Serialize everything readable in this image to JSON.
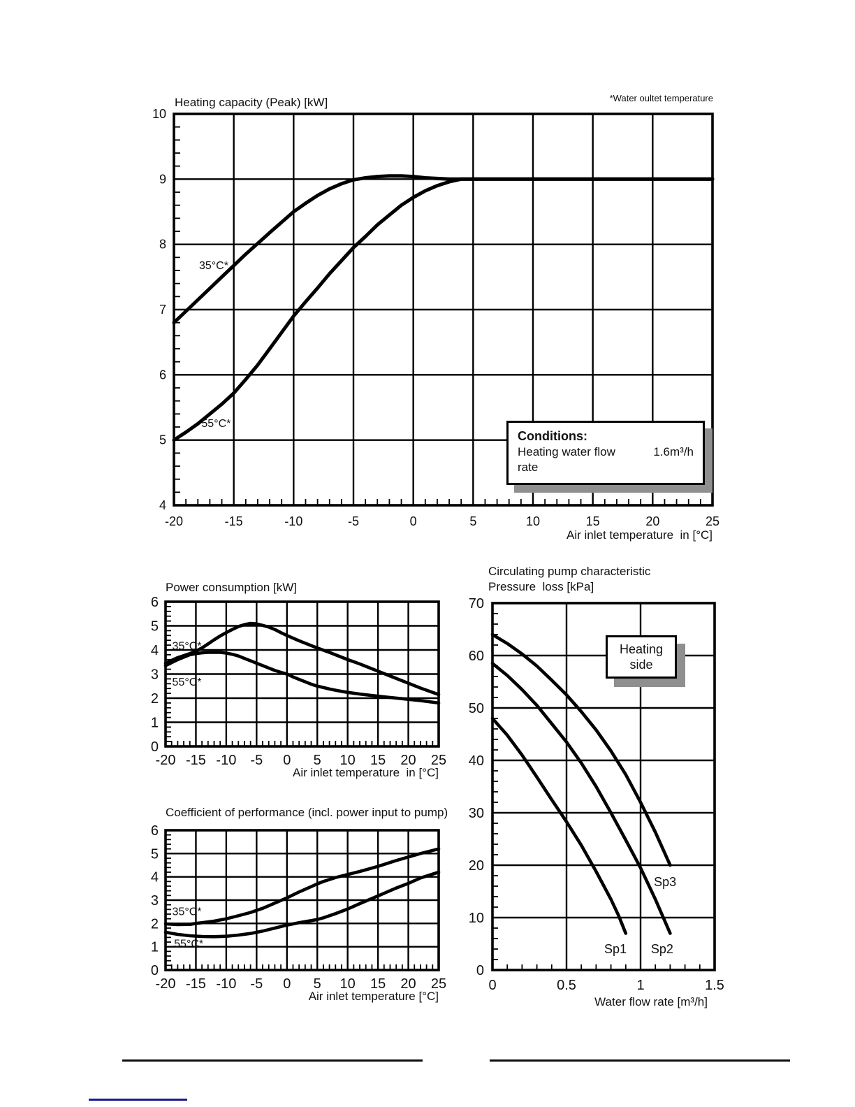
{
  "note_top_right": "*Water oultet temperature",
  "conditions_box": {
    "heading": "Conditions:",
    "label": "Heating water flow rate",
    "value": "1.6m³/h"
  },
  "heating_side_box": {
    "line1": "Heating",
    "line2": "side"
  },
  "chart_data": [
    {
      "id": "heating_capacity",
      "type": "line",
      "title": "Heating capacity (Peak) [kW]",
      "xlabel": "Air inlet temperature  in [°C]",
      "ylabel": "",
      "xlim": [
        -20,
        25
      ],
      "ylim": [
        4,
        10
      ],
      "x_ticks": [
        -20,
        -15,
        -10,
        -5,
        0,
        5,
        10,
        15,
        20,
        25
      ],
      "y_ticks": [
        4,
        5,
        6,
        7,
        8,
        9,
        10
      ],
      "x_minor_step": 1,
      "y_minor_step": 0.2,
      "grid": true,
      "legend_position": "inline-labels",
      "series": [
        {
          "name": "35°C*",
          "label_pos": [
            -17.9,
            7.62
          ],
          "points": [
            [
              -20,
              6.8
            ],
            [
              -18,
              7.15
            ],
            [
              -16,
              7.5
            ],
            [
              -14,
              7.85
            ],
            [
              -12,
              8.18
            ],
            [
              -10,
              8.5
            ],
            [
              -9,
              8.63
            ],
            [
              -8,
              8.75
            ],
            [
              -7,
              8.85
            ],
            [
              -6,
              8.93
            ],
            [
              -5,
              8.99
            ],
            [
              -4,
              9.02
            ],
            [
              -3,
              9.04
            ],
            [
              -2,
              9.05
            ],
            [
              -1,
              9.05
            ],
            [
              0,
              9.04
            ],
            [
              1,
              9.02
            ],
            [
              2,
              9.01
            ],
            [
              3,
              9.0
            ],
            [
              5,
              9.0
            ],
            [
              10,
              9.0
            ],
            [
              15,
              9.0
            ],
            [
              20,
              9.0
            ],
            [
              25,
              9.0
            ]
          ]
        },
        {
          "name": "55°C*",
          "label_pos": [
            -17.7,
            5.2
          ],
          "points": [
            [
              -20,
              5.0
            ],
            [
              -19,
              5.12
            ],
            [
              -18,
              5.25
            ],
            [
              -17,
              5.4
            ],
            [
              -16,
              5.55
            ],
            [
              -15,
              5.72
            ],
            [
              -14,
              5.93
            ],
            [
              -13,
              6.15
            ],
            [
              -12,
              6.4
            ],
            [
              -11,
              6.65
            ],
            [
              -10,
              6.9
            ],
            [
              -9,
              7.12
            ],
            [
              -8,
              7.33
            ],
            [
              -7,
              7.55
            ],
            [
              -6,
              7.75
            ],
            [
              -5,
              7.95
            ],
            [
              -4,
              8.12
            ],
            [
              -3,
              8.3
            ],
            [
              -2,
              8.45
            ],
            [
              -1,
              8.6
            ],
            [
              0,
              8.72
            ],
            [
              1,
              8.82
            ],
            [
              2,
              8.9
            ],
            [
              3,
              8.96
            ],
            [
              4,
              9.0
            ],
            [
              6,
              9.0
            ],
            [
              10,
              9.0
            ],
            [
              15,
              9.0
            ],
            [
              20,
              9.0
            ],
            [
              25,
              9.0
            ]
          ]
        }
      ],
      "conditions_note": "Heating water flow rate 1.6m³/h"
    },
    {
      "id": "power_consumption",
      "type": "line",
      "title": "Power consumption [kW]",
      "xlabel": "Air inlet temperature  in [°C]",
      "ylabel": "",
      "xlim": [
        -20,
        25
      ],
      "ylim": [
        0,
        6
      ],
      "x_ticks": [
        -20,
        -15,
        -10,
        -5,
        0,
        5,
        10,
        15,
        20,
        25
      ],
      "y_ticks": [
        0,
        1,
        2,
        3,
        4,
        5,
        6
      ],
      "x_minor_step": 1,
      "y_minor_step": 0.2,
      "grid": true,
      "legend_position": "inline-labels",
      "series": [
        {
          "name": "35°C*",
          "label_pos": [
            -18.9,
            4.02
          ],
          "points": [
            [
              -20,
              3.45
            ],
            [
              -18,
              3.68
            ],
            [
              -16,
              3.85
            ],
            [
              -15,
              3.95
            ],
            [
              -14,
              4.08
            ],
            [
              -13,
              4.25
            ],
            [
              -12,
              4.42
            ],
            [
              -11,
              4.58
            ],
            [
              -10,
              4.72
            ],
            [
              -9,
              4.85
            ],
            [
              -8,
              4.97
            ],
            [
              -7,
              5.05
            ],
            [
              -6,
              5.1
            ],
            [
              -5,
              5.08
            ],
            [
              -4,
              5.02
            ],
            [
              -3,
              4.95
            ],
            [
              -2,
              4.85
            ],
            [
              -1,
              4.72
            ],
            [
              0,
              4.6
            ],
            [
              2,
              4.38
            ],
            [
              4,
              4.18
            ],
            [
              5,
              4.08
            ],
            [
              7,
              3.9
            ],
            [
              10,
              3.6
            ],
            [
              12,
              3.42
            ],
            [
              15,
              3.12
            ],
            [
              17,
              2.92
            ],
            [
              20,
              2.62
            ],
            [
              22,
              2.42
            ],
            [
              25,
              2.15
            ]
          ]
        },
        {
          "name": "55°C*",
          "label_pos": [
            -18.9,
            2.52
          ],
          "points": [
            [
              -20,
              3.35
            ],
            [
              -18,
              3.6
            ],
            [
              -16,
              3.8
            ],
            [
              -15,
              3.85
            ],
            [
              -14,
              3.88
            ],
            [
              -13,
              3.9
            ],
            [
              -12,
              3.9
            ],
            [
              -11,
              3.9
            ],
            [
              -10,
              3.87
            ],
            [
              -9,
              3.82
            ],
            [
              -8,
              3.75
            ],
            [
              -7,
              3.65
            ],
            [
              -6,
              3.55
            ],
            [
              -5,
              3.45
            ],
            [
              -4,
              3.35
            ],
            [
              -3,
              3.25
            ],
            [
              -2,
              3.15
            ],
            [
              -1,
              3.07
            ],
            [
              0,
              3.0
            ],
            [
              1,
              2.88
            ],
            [
              2,
              2.78
            ],
            [
              3,
              2.68
            ],
            [
              4,
              2.58
            ],
            [
              5,
              2.5
            ],
            [
              6,
              2.44
            ],
            [
              7,
              2.38
            ],
            [
              8,
              2.33
            ],
            [
              9,
              2.28
            ],
            [
              10,
              2.24
            ],
            [
              12,
              2.17
            ],
            [
              15,
              2.08
            ],
            [
              17,
              2.03
            ],
            [
              20,
              1.95
            ],
            [
              22,
              1.9
            ],
            [
              25,
              1.8
            ]
          ]
        }
      ]
    },
    {
      "id": "cop",
      "type": "line",
      "title": "Coefficient of performance (incl. power input to pump)",
      "xlabel": "Air inlet temperature [°C]",
      "ylabel": "",
      "xlim": [
        -20,
        25
      ],
      "ylim": [
        0,
        6
      ],
      "x_ticks": [
        -20,
        -15,
        -10,
        -5,
        0,
        5,
        10,
        15,
        20,
        25
      ],
      "y_ticks": [
        0,
        1,
        2,
        3,
        4,
        5,
        6
      ],
      "x_minor_step": 1,
      "y_minor_step": 0.2,
      "grid": true,
      "legend_position": "inline-labels",
      "series": [
        {
          "name": "35°C*",
          "label_pos": [
            -18.9,
            2.35
          ],
          "points": [
            [
              -20,
              1.98
            ],
            [
              -18,
              1.95
            ],
            [
              -16,
              1.96
            ],
            [
              -15,
              2.0
            ],
            [
              -14,
              2.03
            ],
            [
              -12,
              2.1
            ],
            [
              -10,
              2.2
            ],
            [
              -8,
              2.33
            ],
            [
              -6,
              2.47
            ],
            [
              -5,
              2.56
            ],
            [
              -4,
              2.65
            ],
            [
              -2,
              2.87
            ],
            [
              0,
              3.1
            ],
            [
              2,
              3.35
            ],
            [
              4,
              3.58
            ],
            [
              5,
              3.7
            ],
            [
              6,
              3.8
            ],
            [
              8,
              3.97
            ],
            [
              10,
              4.1
            ],
            [
              12,
              4.23
            ],
            [
              15,
              4.45
            ],
            [
              18,
              4.7
            ],
            [
              20,
              4.85
            ],
            [
              22,
              5.0
            ],
            [
              25,
              5.2
            ]
          ]
        },
        {
          "name": "55°C*",
          "label_pos": [
            -18.6,
            0.98
          ],
          "points": [
            [
              -20,
              1.62
            ],
            [
              -18,
              1.53
            ],
            [
              -16,
              1.47
            ],
            [
              -14,
              1.44
            ],
            [
              -12,
              1.43
            ],
            [
              -10,
              1.45
            ],
            [
              -8,
              1.5
            ],
            [
              -6,
              1.57
            ],
            [
              -5,
              1.62
            ],
            [
              -4,
              1.67
            ],
            [
              -2,
              1.8
            ],
            [
              0,
              1.93
            ],
            [
              2,
              2.03
            ],
            [
              4,
              2.12
            ],
            [
              5,
              2.17
            ],
            [
              6,
              2.24
            ],
            [
              8,
              2.42
            ],
            [
              10,
              2.62
            ],
            [
              12,
              2.85
            ],
            [
              15,
              3.18
            ],
            [
              18,
              3.52
            ],
            [
              20,
              3.72
            ],
            [
              22,
              3.95
            ],
            [
              25,
              4.2
            ]
          ]
        }
      ]
    },
    {
      "id": "pump",
      "type": "line",
      "title": "Circulating pump characteristic",
      "subtitle": "Pressure  loss [kPa]",
      "xlabel": "Water flow rate [m³/h]",
      "ylabel": "",
      "xlim": [
        0,
        1.5
      ],
      "ylim": [
        0,
        70
      ],
      "x_ticks": [
        0,
        0.5,
        1,
        1.5
      ],
      "y_ticks": [
        0,
        10,
        20,
        30,
        40,
        50,
        60,
        70
      ],
      "x_minor_step": 0.1,
      "y_minor_step": 2,
      "grid": true,
      "legend_position": "inline-labels",
      "annotation_box": "Heating side",
      "series": [
        {
          "name": "Sp1",
          "label_pos": [
            0.755,
            3.2
          ],
          "points": [
            [
              0,
              48
            ],
            [
              0.1,
              44.8
            ],
            [
              0.2,
              41
            ],
            [
              0.3,
              36.8
            ],
            [
              0.4,
              32.5
            ],
            [
              0.5,
              28.3
            ],
            [
              0.6,
              23.8
            ],
            [
              0.7,
              18.8
            ],
            [
              0.8,
              13.5
            ],
            [
              0.85,
              10.5
            ],
            [
              0.9,
              7
            ]
          ]
        },
        {
          "name": "Sp2",
          "label_pos": [
            1.07,
            3.2
          ],
          "points": [
            [
              0,
              58.5
            ],
            [
              0.1,
              56.2
            ],
            [
              0.2,
              53.5
            ],
            [
              0.3,
              50.5
            ],
            [
              0.4,
              47
            ],
            [
              0.5,
              43.5
            ],
            [
              0.6,
              39.5
            ],
            [
              0.7,
              35
            ],
            [
              0.8,
              30
            ],
            [
              0.9,
              24.8
            ],
            [
              1.0,
              19.5
            ],
            [
              1.1,
              13.5
            ],
            [
              1.2,
              7
            ]
          ]
        },
        {
          "name": "Sp3",
          "label_pos": [
            1.09,
            16
          ],
          "points": [
            [
              0,
              64
            ],
            [
              0.1,
              62.3
            ],
            [
              0.2,
              60.3
            ],
            [
              0.3,
              58
            ],
            [
              0.4,
              55.3
            ],
            [
              0.5,
              52.5
            ],
            [
              0.6,
              49.3
            ],
            [
              0.7,
              45.8
            ],
            [
              0.8,
              41.8
            ],
            [
              0.9,
              37.3
            ],
            [
              1.0,
              32
            ],
            [
              1.1,
              26.3
            ],
            [
              1.2,
              20
            ]
          ]
        }
      ]
    }
  ]
}
